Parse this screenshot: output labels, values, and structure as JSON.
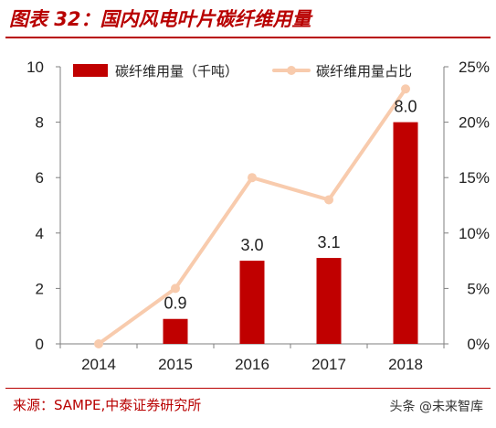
{
  "figure": {
    "title": "图表 32：国内风电叶片碳纤维用量",
    "source": "来源：SAMPE,中泰证券研究所",
    "watermark": "头条 @未来智库"
  },
  "colors": {
    "accent": "#b80000",
    "bar": "#c00000",
    "line": "#f8cbad",
    "axis": "#7f7f7f",
    "text": "#222222"
  },
  "chart_data": {
    "type": "bar",
    "categories": [
      "2014",
      "2015",
      "2016",
      "2017",
      "2018"
    ],
    "series": [
      {
        "name": "碳纤维用量（千吨）",
        "type": "bar",
        "axis": "left",
        "values": [
          0,
          0.9,
          3.0,
          3.1,
          8.0
        ],
        "data_labels": [
          "",
          "0.9",
          "3.0",
          "3.1",
          "8.0"
        ]
      },
      {
        "name": "碳纤维用量占比",
        "type": "line",
        "axis": "right",
        "values": [
          0,
          5,
          15,
          13,
          23
        ]
      }
    ],
    "y_left": {
      "ylim": [
        0,
        10
      ],
      "ticks": [
        "0",
        "2",
        "4",
        "6",
        "8",
        "10"
      ]
    },
    "y_right": {
      "ylim": [
        0,
        25
      ],
      "ticks": [
        "0%",
        "5%",
        "10%",
        "15%",
        "20%",
        "25%"
      ]
    },
    "legend_position": "top",
    "grid": false
  }
}
